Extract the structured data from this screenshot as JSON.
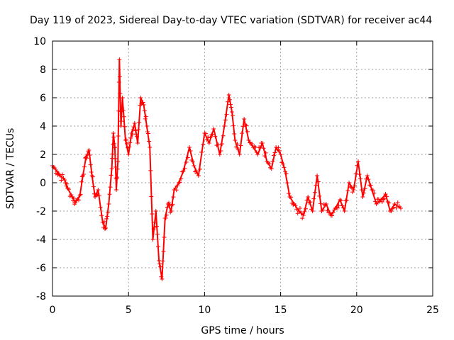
{
  "chart_data": {
    "type": "scatter",
    "title": "Day 119 of 2023, Sidereal Day-to-day VTEC variation (SDTVAR) for receiver ac44",
    "xlabel": "GPS time / hours",
    "ylabel": "SDTVAR / TECUs",
    "xlim": [
      0,
      25
    ],
    "ylim": [
      -8,
      10
    ],
    "grid": true,
    "marker": "plus",
    "series_color": "#ff0000",
    "xticks": [
      {
        "value": 0,
        "label": "0"
      },
      {
        "value": 5,
        "label": "5"
      },
      {
        "value": 10,
        "label": "10"
      },
      {
        "value": 15,
        "label": "15"
      },
      {
        "value": 20,
        "label": "20"
      },
      {
        "value": 25,
        "label": "25"
      }
    ],
    "yticks": [
      {
        "value": -8,
        "label": "-8"
      },
      {
        "value": -6,
        "label": "-6"
      },
      {
        "value": -4,
        "label": "-4"
      },
      {
        "value": -2,
        "label": "-2"
      },
      {
        "value": 0,
        "label": "0"
      },
      {
        "value": 2,
        "label": "2"
      },
      {
        "value": 4,
        "label": "4"
      },
      {
        "value": 6,
        "label": "6"
      },
      {
        "value": 8,
        "label": "8"
      },
      {
        "value": 10,
        "label": "10"
      }
    ],
    "series": [
      {
        "name": "SDTVAR",
        "x": [
          0.0,
          0.3,
          0.5,
          0.8,
          1.0,
          1.3,
          1.5,
          1.8,
          2.0,
          2.2,
          2.4,
          2.6,
          2.8,
          3.0,
          3.3,
          3.5,
          3.7,
          3.9,
          4.0,
          4.1,
          4.2,
          4.3,
          4.4,
          4.5,
          4.6,
          4.8,
          5.0,
          5.2,
          5.4,
          5.6,
          5.8,
          6.0,
          6.2,
          6.4,
          6.6,
          6.8,
          7.0,
          7.2,
          7.4,
          7.6,
          7.8,
          8.0,
          8.3,
          8.6,
          9.0,
          9.3,
          9.6,
          10.0,
          10.3,
          10.6,
          11.0,
          11.3,
          11.6,
          11.8,
          12.0,
          12.3,
          12.6,
          12.9,
          13.2,
          13.5,
          13.8,
          14.1,
          14.4,
          14.7,
          15.0,
          15.3,
          15.6,
          15.9,
          16.2,
          16.5,
          16.8,
          17.1,
          17.4,
          17.7,
          18.0,
          18.3,
          18.6,
          18.9,
          19.2,
          19.5,
          19.8,
          20.1,
          20.4,
          20.7,
          21.0,
          21.3,
          21.6,
          21.9,
          22.2,
          22.5,
          22.9
        ],
        "y": [
          1.2,
          0.8,
          0.5,
          0.2,
          -0.4,
          -1.0,
          -1.4,
          -0.9,
          0.5,
          1.8,
          2.3,
          0.5,
          -1.0,
          -0.5,
          -2.8,
          -3.2,
          -1.5,
          1.0,
          3.5,
          2.5,
          -0.5,
          1.5,
          8.7,
          4.0,
          6.0,
          3.0,
          2.0,
          3.5,
          4.2,
          2.8,
          6.0,
          5.5,
          4.0,
          2.5,
          -4.0,
          -2.0,
          -5.5,
          -6.8,
          -2.5,
          -1.5,
          -2.0,
          -0.5,
          0.0,
          0.8,
          2.5,
          1.2,
          0.5,
          3.5,
          2.8,
          3.8,
          2.0,
          4.0,
          6.2,
          5.0,
          3.0,
          2.0,
          4.5,
          3.0,
          2.5,
          2.0,
          2.8,
          1.5,
          1.0,
          2.5,
          2.0,
          0.8,
          -1.0,
          -1.5,
          -2.0,
          -2.3,
          -1.0,
          -2.0,
          0.5,
          -2.0,
          -1.5,
          -2.3,
          -1.8,
          -1.2,
          -2.0,
          0.0,
          -0.5,
          1.5,
          -1.0,
          0.5,
          -0.5,
          -1.5,
          -1.2,
          -0.8,
          -2.0,
          -1.5,
          -1.8
        ]
      }
    ]
  }
}
